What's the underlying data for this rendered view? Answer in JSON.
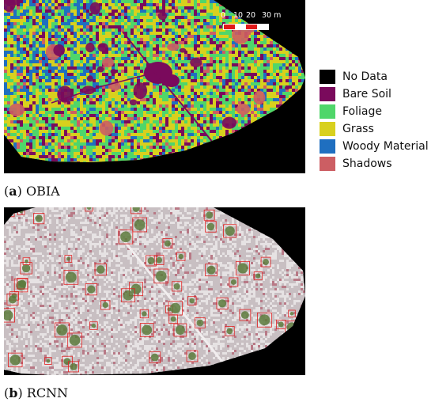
{
  "panels": {
    "a": {
      "label_letter": "a",
      "label_text": "OBIA"
    },
    "b": {
      "label_letter": "b",
      "label_text": "RCNN"
    }
  },
  "scalebar": {
    "ticks": [
      "0",
      "10",
      "20",
      "30 m"
    ]
  },
  "legend": {
    "items": [
      {
        "label": "No Data",
        "color": "#000000"
      },
      {
        "label": "Bare Soil",
        "color": "#7a0a5c"
      },
      {
        "label": "Foliage",
        "color": "#4fd66a"
      },
      {
        "label": "Grass",
        "color": "#d8d01e"
      },
      {
        "label": "Woody Material",
        "color": "#1f6fc0"
      },
      {
        "label": "Shadows",
        "color": "#cc5e63"
      }
    ]
  },
  "map_colors": {
    "no_data": "#000000",
    "bare_soil": "#7a0a5c",
    "foliage": "#4fd66a",
    "grass": "#d8d01e",
    "woody": "#1f6fc0",
    "shadows": "#cc5e63"
  },
  "photo_colors": {
    "ground": "#c8bfc2",
    "ground_light": "#e6e2e3",
    "vegetation": "#5c7a3c",
    "shrub_red": "#a8344a",
    "box": "#e02020"
  }
}
